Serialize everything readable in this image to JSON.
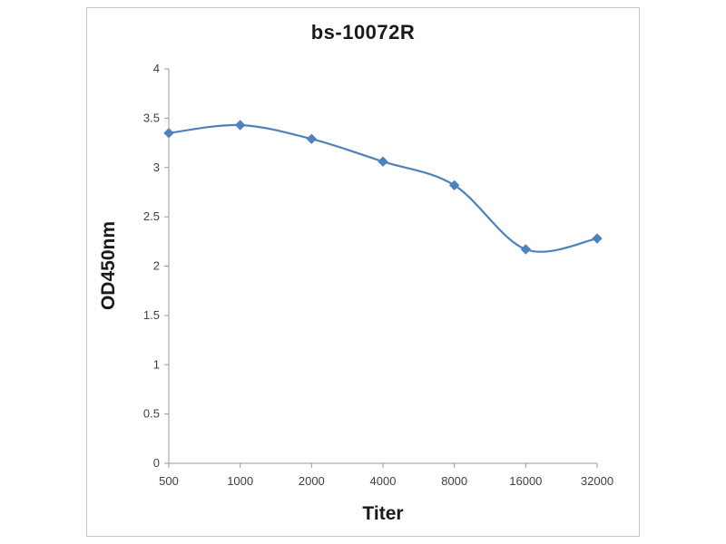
{
  "chart_data": {
    "type": "line",
    "title": "bs-10072R",
    "xlabel": "Titer",
    "ylabel": "OD450nm",
    "categories": [
      "500",
      "1000",
      "2000",
      "4000",
      "8000",
      "16000",
      "32000"
    ],
    "series": [
      {
        "name": "OD450nm",
        "values": [
          3.35,
          3.43,
          3.29,
          3.06,
          2.82,
          2.17,
          2.28
        ]
      }
    ],
    "ylim": [
      0,
      4
    ],
    "ytick_step": 0.5,
    "ytick_labels": [
      "0",
      "0.5",
      "1",
      "1.5",
      "2",
      "2.5",
      "3",
      "3.5",
      "4"
    ],
    "grid": false,
    "legend_position": "none",
    "line_color": "#4f81bd",
    "marker": "diamond",
    "axis_color": "#9a9a9a",
    "tick_text_color": "#3f3f3f",
    "panel_border_color": "#c9c9c9",
    "background_color": "#ffffff"
  }
}
